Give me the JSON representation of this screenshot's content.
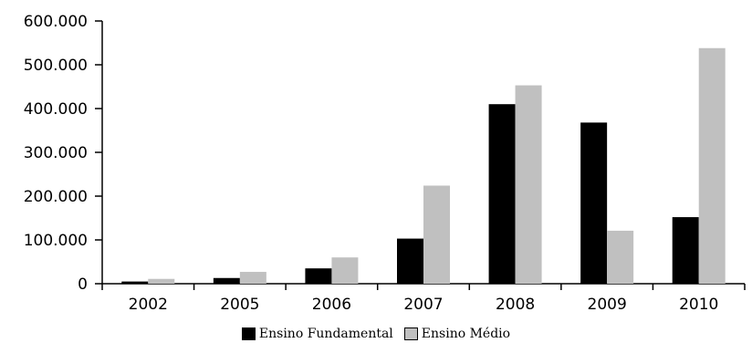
{
  "chart_data": {
    "type": "bar",
    "title": "",
    "xlabel": "",
    "ylabel": "",
    "categories": [
      "2002",
      "2005",
      "2006",
      "2007",
      "2008",
      "2009",
      "2010"
    ],
    "series": [
      {
        "name": "Ensino Fundamental",
        "color": "#000000",
        "values": [
          5000,
          13000,
          35000,
          103000,
          410000,
          368000,
          152000
        ]
      },
      {
        "name": "Ensino Médio",
        "color": "#c0c0c0",
        "values": [
          11000,
          27000,
          60000,
          224000,
          453000,
          121000,
          538000
        ]
      }
    ],
    "ylim": [
      0,
      600000
    ],
    "yticks": [
      0,
      100000,
      200000,
      300000,
      400000,
      500000,
      600000
    ],
    "ytick_labels": [
      "0",
      "100.000",
      "200.000",
      "300.000",
      "400.000",
      "500.000",
      "600.000"
    ],
    "grid": false,
    "legend_position": "bottom"
  }
}
